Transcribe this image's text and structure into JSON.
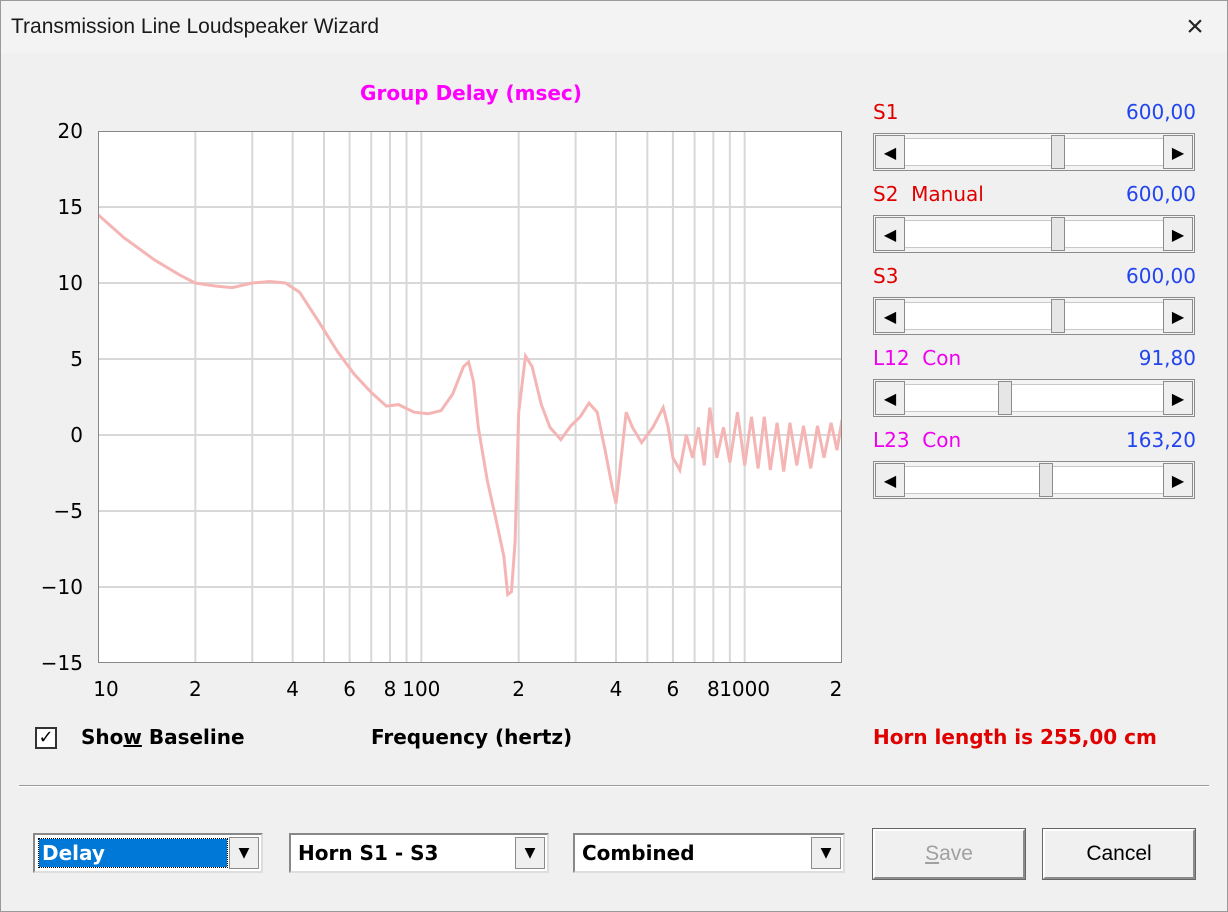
{
  "window": {
    "title": "Transmission Line Loudspeaker Wizard"
  },
  "chart_data": {
    "type": "line",
    "title": "Group Delay (msec)",
    "xlabel": "Frequency (hertz)",
    "ylabel": "",
    "x_scale": "log",
    "xlim": [
      10,
      2000
    ],
    "ylim": [
      -15,
      20
    ],
    "y_ticks": [
      "20",
      "15",
      "10",
      "5",
      "0",
      "−5",
      "−10",
      "−15"
    ],
    "x_ticks": [
      "10",
      "2",
      "4",
      "6",
      "8",
      "100",
      "2",
      "4",
      "6",
      "8",
      "1000",
      "2"
    ],
    "grid": true,
    "series": [
      {
        "color": "#f5b5b5",
        "x": [
          10,
          12,
          15,
          18,
          20,
          23,
          26,
          30,
          34,
          38,
          42,
          48,
          55,
          62,
          70,
          78,
          85,
          95,
          105,
          115,
          125,
          135,
          140,
          145,
          150,
          160,
          170,
          180,
          185,
          190,
          195,
          200,
          210,
          220,
          235,
          250,
          270,
          290,
          310,
          330,
          350,
          370,
          390,
          400,
          410,
          430,
          450,
          480,
          520,
          560,
          580,
          600,
          630,
          660,
          690,
          720,
          750,
          780,
          820,
          860,
          900,
          950,
          1000,
          1050,
          1100,
          1150,
          1200,
          1260,
          1320,
          1380,
          1450,
          1520,
          1600,
          1680,
          1760,
          1850,
          1930,
          2000
        ],
        "values": [
          14.5,
          13,
          11.5,
          10.5,
          10,
          9.8,
          9.7,
          10,
          10.1,
          10,
          9.4,
          7.5,
          5.5,
          4,
          2.8,
          1.9,
          2,
          1.5,
          1.4,
          1.6,
          2.7,
          4.5,
          4.8,
          3.5,
          0.5,
          -3,
          -5.5,
          -8,
          -10.5,
          -10.3,
          -7,
          1.5,
          5.2,
          4.5,
          2,
          0.5,
          -0.3,
          0.6,
          1.2,
          2.1,
          1.5,
          -1,
          -3.5,
          -4.5,
          -2.5,
          1.5,
          0.5,
          -0.5,
          0.5,
          1.8,
          0.5,
          -1.5,
          -2.3,
          0,
          -1.5,
          0.5,
          -2,
          1.8,
          -1.5,
          0.5,
          -1.8,
          1.5,
          -2,
          1.2,
          -2.2,
          1.2,
          -2.3,
          0.8,
          -2.4,
          0.8,
          -2,
          0.6,
          -2.2,
          0.6,
          -1.5,
          0.8,
          -1,
          1
        ]
      }
    ]
  },
  "show_baseline": {
    "label_before": "Sho",
    "label_accel": "w",
    "label_after": " Baseline",
    "checked": true,
    "mark": "✓"
  },
  "sliders": [
    {
      "label": "S1",
      "label_color": "red",
      "value": "600,00",
      "position": 0.6
    },
    {
      "label": "S2  Manual",
      "label_color": "red",
      "value": "600,00",
      "position": 0.6
    },
    {
      "label": "S3",
      "label_color": "red",
      "value": "600,00",
      "position": 0.6
    },
    {
      "label": "L12  Con",
      "label_color": "magenta",
      "value": "91,80",
      "position": 0.38
    },
    {
      "label": "L23  Con",
      "label_color": "magenta",
      "value": "163,20",
      "position": 0.55
    }
  ],
  "horn_length": "Horn length is 255,00 cm",
  "dropdowns": {
    "mode": "Delay",
    "section": "Horn S1 - S3",
    "source": "Combined"
  },
  "buttons": {
    "save_accel": "S",
    "save_rest": "ave",
    "cancel": "Cancel"
  },
  "colors": {
    "curve": "#f5b5b5",
    "title": "#ff00ff",
    "values": "#2244ee",
    "alert": "#e00000",
    "selection": "#0078d7"
  },
  "icons": {
    "close": "×",
    "left": "◀",
    "right": "▶",
    "down": "▼"
  }
}
